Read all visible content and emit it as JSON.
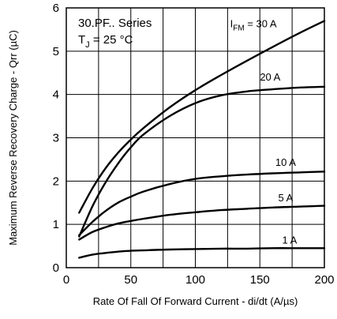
{
  "chart_data": {
    "type": "line",
    "title": "",
    "xlabel": "Rate Of Fall Of Forward Current - di/dt (A/µs)",
    "ylabel": "Maximum Reverse Recovery Charge - Qrr (µC)",
    "xlim": [
      0,
      200
    ],
    "ylim": [
      0,
      6
    ],
    "xticks": [
      0,
      50,
      100,
      150,
      200
    ],
    "yticks": [
      0,
      1,
      2,
      3,
      4,
      5,
      6
    ],
    "grid": true,
    "annotations": {
      "series": "30.PF.. Series",
      "tj_main": "T",
      "tj_sub": "J",
      "tj_rest": " = 25 °C"
    },
    "series": [
      {
        "name": "30 A",
        "label_main": "I",
        "label_sub": "FM",
        "label_rest": " = 30 A",
        "x": [
          10,
          20,
          30,
          40,
          50,
          60,
          80,
          100,
          120,
          140,
          160,
          180,
          200
        ],
        "y": [
          1.27,
          1.82,
          2.28,
          2.65,
          2.96,
          3.23,
          3.7,
          4.1,
          4.45,
          4.78,
          5.1,
          5.41,
          5.7
        ]
      },
      {
        "name": "20 A",
        "label_main": "20 A",
        "x": [
          10,
          20,
          30,
          40,
          50,
          60,
          80,
          100,
          120,
          140,
          160,
          180,
          200
        ],
        "y": [
          0.72,
          1.4,
          1.95,
          2.4,
          2.78,
          3.08,
          3.5,
          3.8,
          3.98,
          4.07,
          4.12,
          4.16,
          4.18
        ]
      },
      {
        "name": "10 A",
        "label_main": "10 A",
        "x": [
          10,
          20,
          30,
          40,
          50,
          60,
          80,
          100,
          120,
          140,
          160,
          180,
          200
        ],
        "y": [
          0.75,
          1.05,
          1.3,
          1.5,
          1.64,
          1.76,
          1.93,
          2.05,
          2.11,
          2.15,
          2.18,
          2.2,
          2.22
        ]
      },
      {
        "name": "5 A",
        "label_main": "5 A",
        "x": [
          10,
          20,
          30,
          40,
          50,
          60,
          80,
          100,
          120,
          140,
          160,
          180,
          200
        ],
        "y": [
          0.65,
          0.82,
          0.93,
          1.02,
          1.08,
          1.13,
          1.22,
          1.28,
          1.33,
          1.36,
          1.39,
          1.41,
          1.43
        ]
      },
      {
        "name": "1 A",
        "label_main": "1 A",
        "x": [
          10,
          20,
          30,
          40,
          50,
          60,
          80,
          100,
          120,
          140,
          160,
          180,
          200
        ],
        "y": [
          0.23,
          0.3,
          0.34,
          0.37,
          0.39,
          0.4,
          0.42,
          0.43,
          0.44,
          0.44,
          0.45,
          0.45,
          0.45
        ]
      }
    ]
  }
}
